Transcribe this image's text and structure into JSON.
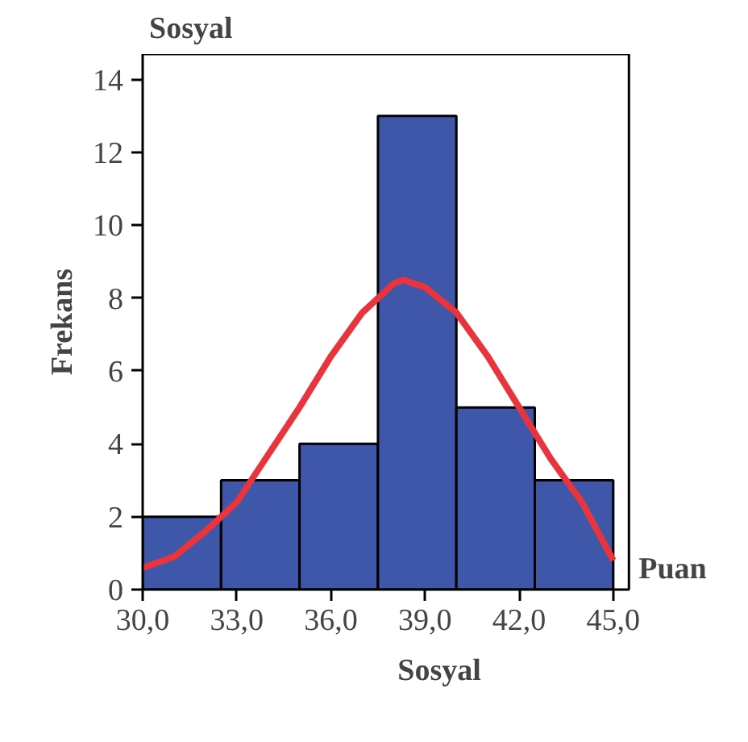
{
  "chart_data": {
    "type": "histogram",
    "title": "Sosyal",
    "xlabel": "Sosyal",
    "ylabel": "Frekans",
    "annotations": [
      "Puan"
    ],
    "bins": [
      30,
      32.5,
      35,
      37.5,
      40,
      42.5,
      45
    ],
    "values": [
      2,
      3,
      4,
      13,
      5,
      3
    ],
    "color": "#3f57a8",
    "series": [
      {
        "type": "line",
        "color": "#e8343c",
        "x": [
          30,
          31,
          32,
          33,
          34,
          35,
          36,
          37,
          38,
          38.3,
          39,
          40,
          41,
          42,
          43,
          44,
          45
        ],
        "values": [
          0.6,
          0.9,
          1.6,
          2.4,
          3.7,
          5.0,
          6.4,
          7.6,
          8.4,
          8.5,
          8.3,
          7.6,
          6.4,
          5.0,
          3.6,
          2.4,
          0.8
        ]
      }
    ],
    "xlim": [
      30,
      45.5
    ],
    "ylim": [
      0,
      14.7
    ],
    "xticks": [
      {
        "value": 30,
        "label": "30,0"
      },
      {
        "value": 33,
        "label": "33,0"
      },
      {
        "value": 36,
        "label": "36,0"
      },
      {
        "value": 39,
        "label": "39,0"
      },
      {
        "value": 42,
        "label": "42,0"
      },
      {
        "value": 45,
        "label": "45,0"
      }
    ],
    "yticks": [
      0,
      2,
      4,
      6,
      8,
      10,
      12,
      14
    ],
    "grid": false
  }
}
